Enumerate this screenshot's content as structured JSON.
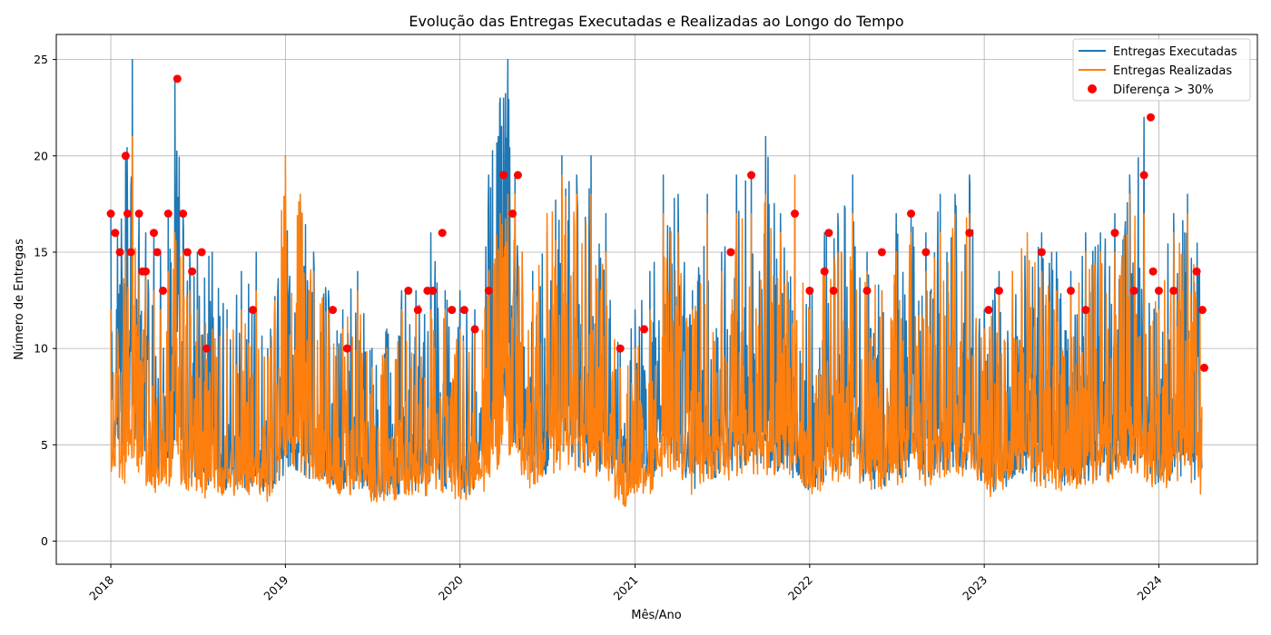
{
  "chart_data": {
    "type": "line",
    "title": "Evolução das Entregas Executadas e Realizadas ao Longo do Tempo",
    "xlabel": "Mês/Ano",
    "ylabel": "Número de Entregas",
    "x_axis_type": "date",
    "xlim": [
      "2017-09-09",
      "2024-07-25"
    ],
    "ylim": [
      -1.2,
      26.3
    ],
    "x_ticks": [
      "2018",
      "2019",
      "2020",
      "2021",
      "2022",
      "2023",
      "2024"
    ],
    "y_ticks": [
      0,
      5,
      10,
      15,
      20,
      25
    ],
    "grid": true,
    "legend_position": "top-right",
    "series": [
      {
        "name": "Entregas Executadas",
        "color": "#1f77b4",
        "x": [
          "2018-01-01",
          "2018-01-15",
          "2018-02-01",
          "2018-02-15",
          "2018-03-01",
          "2018-03-15",
          "2018-04-01",
          "2018-04-15",
          "2018-05-01",
          "2018-05-15",
          "2018-06-01",
          "2018-06-15",
          "2018-07-01",
          "2018-08-01",
          "2018-09-01",
          "2018-10-01",
          "2018-11-01",
          "2018-12-01",
          "2019-01-01",
          "2019-02-01",
          "2019-03-01",
          "2019-04-01",
          "2019-05-01",
          "2019-06-01",
          "2019-07-01",
          "2019-08-01",
          "2019-09-01",
          "2019-10-01",
          "2019-11-01",
          "2019-12-01",
          "2020-01-01",
          "2020-02-01",
          "2020-03-01",
          "2020-03-25",
          "2020-04-10",
          "2020-04-25",
          "2020-05-10",
          "2020-06-01",
          "2020-07-01",
          "2020-08-01",
          "2020-09-01",
          "2020-10-01",
          "2020-11-01",
          "2020-12-01",
          "2021-01-01",
          "2021-02-01",
          "2021-03-01",
          "2021-04-01",
          "2021-05-01",
          "2021-06-01",
          "2021-07-01",
          "2021-08-01",
          "2021-09-01",
          "2021-10-01",
          "2021-11-01",
          "2021-12-01",
          "2022-01-01",
          "2022-02-01",
          "2022-03-01",
          "2022-04-01",
          "2022-05-01",
          "2022-06-01",
          "2022-07-01",
          "2022-08-01",
          "2022-09-01",
          "2022-10-01",
          "2022-11-01",
          "2022-12-01",
          "2023-01-01",
          "2023-02-01",
          "2023-03-01",
          "2023-04-01",
          "2023-05-01",
          "2023-06-01",
          "2023-07-01",
          "2023-08-01",
          "2023-09-01",
          "2023-10-01",
          "2023-11-01",
          "2023-12-01",
          "2024-01-01",
          "2024-02-01",
          "2024-03-01",
          "2024-04-01"
        ],
        "max": [
          17,
          16,
          20,
          25,
          17,
          16,
          16,
          15,
          17,
          24,
          17,
          15,
          15,
          15,
          12,
          14,
          15,
          11,
          17,
          18,
          15,
          13,
          12,
          14,
          10,
          11,
          13,
          13,
          16,
          13,
          13,
          12,
          19,
          23,
          25,
          19,
          15,
          14,
          16,
          20,
          19,
          20,
          17,
          10,
          12,
          14,
          19,
          18,
          13,
          18,
          15,
          19,
          19,
          21,
          17,
          17,
          13,
          16,
          17,
          19,
          15,
          13,
          17,
          17,
          16,
          18,
          18,
          19,
          12,
          14,
          14,
          15,
          16,
          15,
          14,
          16,
          16,
          17,
          19,
          22,
          13,
          17,
          18,
          15
        ],
        "min": [
          3,
          1,
          1,
          1,
          1,
          0,
          0,
          0,
          0,
          0,
          0,
          0,
          0,
          0,
          0,
          0,
          0,
          0,
          0,
          0,
          0,
          0,
          0,
          0,
          0,
          0,
          0,
          0,
          0,
          0,
          0,
          0,
          1,
          2,
          2,
          1,
          1,
          1,
          0,
          1,
          0,
          0,
          0,
          1,
          1,
          0,
          1,
          0,
          0,
          0,
          0,
          0,
          0,
          0,
          0,
          0,
          0,
          0,
          0,
          0,
          0,
          0,
          0,
          0,
          0,
          0,
          0,
          0,
          0,
          0,
          0,
          0,
          0,
          0,
          0,
          0,
          0,
          0,
          0,
          0,
          0,
          0,
          0,
          0
        ]
      },
      {
        "name": "Entregas Realizadas",
        "color": "#ff7f0e",
        "x": [
          "2018-01-01",
          "2018-01-15",
          "2018-02-01",
          "2018-02-15",
          "2018-03-01",
          "2018-03-15",
          "2018-04-01",
          "2018-04-15",
          "2018-05-01",
          "2018-05-15",
          "2018-06-01",
          "2018-06-15",
          "2018-07-01",
          "2018-08-01",
          "2018-09-01",
          "2018-10-01",
          "2018-11-01",
          "2018-12-01",
          "2019-01-01",
          "2019-02-01",
          "2019-03-01",
          "2019-04-01",
          "2019-05-01",
          "2019-06-01",
          "2019-07-01",
          "2019-08-01",
          "2019-09-01",
          "2019-10-01",
          "2019-11-01",
          "2019-12-01",
          "2020-01-01",
          "2020-02-01",
          "2020-03-01",
          "2020-03-25",
          "2020-04-10",
          "2020-04-25",
          "2020-05-10",
          "2020-06-01",
          "2020-07-01",
          "2020-08-01",
          "2020-09-01",
          "2020-10-01",
          "2020-11-01",
          "2020-12-01",
          "2021-01-01",
          "2021-02-01",
          "2021-03-01",
          "2021-04-01",
          "2021-05-01",
          "2021-06-01",
          "2021-07-01",
          "2021-08-01",
          "2021-09-01",
          "2021-10-01",
          "2021-11-01",
          "2021-12-01",
          "2022-01-01",
          "2022-02-01",
          "2022-03-01",
          "2022-04-01",
          "2022-05-01",
          "2022-06-01",
          "2022-07-01",
          "2022-08-01",
          "2022-09-01",
          "2022-10-01",
          "2022-11-01",
          "2022-12-01",
          "2023-01-01",
          "2023-02-01",
          "2023-03-01",
          "2023-04-01",
          "2023-05-01",
          "2023-06-01",
          "2023-07-01",
          "2023-08-01",
          "2023-09-01",
          "2023-10-01",
          "2023-11-01",
          "2023-12-01",
          "2024-01-01",
          "2024-02-01",
          "2024-03-01",
          "2024-04-01"
        ],
        "max": [
          12,
          11,
          15,
          21,
          14,
          14,
          13,
          12,
          14,
          16,
          15,
          13,
          12,
          11,
          11,
          12,
          13,
          10,
          20,
          18,
          14,
          12,
          11,
          13,
          9,
          10,
          12,
          12,
          12,
          12,
          11,
          11,
          14,
          17,
          18,
          18,
          15,
          13,
          17,
          19,
          18,
          18,
          15,
          9,
          10,
          12,
          17,
          16,
          12,
          17,
          14,
          17,
          17,
          18,
          16,
          19,
          12,
          14,
          15,
          17,
          14,
          13,
          15,
          16,
          14,
          16,
          17,
          17,
          11,
          13,
          14,
          16,
          14,
          13,
          13,
          15,
          15,
          15,
          18,
          17,
          12,
          16,
          17,
          12
        ],
        "min": [
          1,
          1,
          0,
          0,
          0,
          0,
          0,
          0,
          0,
          0,
          0,
          0,
          0,
          0,
          0,
          0,
          0,
          0,
          0,
          0,
          0,
          0,
          0,
          0,
          0,
          0,
          0,
          0,
          0,
          0,
          0,
          0,
          0,
          1,
          1,
          1,
          0,
          0,
          0,
          0,
          0,
          0,
          0,
          0,
          0,
          0,
          0,
          0,
          0,
          0,
          0,
          0,
          0,
          0,
          0,
          0,
          0,
          0,
          0,
          0,
          0,
          0,
          0,
          0,
          0,
          0,
          0,
          0,
          0,
          0,
          0,
          0,
          0,
          0,
          0,
          0,
          0,
          0,
          0,
          0,
          0,
          0,
          0,
          0
        ]
      }
    ],
    "scatter": {
      "name": "Diferença > 30%",
      "color": "#ff0000",
      "points": [
        [
          "2018-01-01",
          17
        ],
        [
          "2018-01-10",
          16
        ],
        [
          "2018-01-20",
          15
        ],
        [
          "2018-02-01",
          20
        ],
        [
          "2018-02-05",
          17
        ],
        [
          "2018-02-12",
          15
        ],
        [
          "2018-03-01",
          17
        ],
        [
          "2018-03-08",
          14
        ],
        [
          "2018-03-15",
          14
        ],
        [
          "2018-04-01",
          16
        ],
        [
          "2018-04-08",
          15
        ],
        [
          "2018-04-20",
          13
        ],
        [
          "2018-05-01",
          17
        ],
        [
          "2018-05-20",
          24
        ],
        [
          "2018-06-01",
          17
        ],
        [
          "2018-06-10",
          15
        ],
        [
          "2018-06-20",
          14
        ],
        [
          "2018-07-10",
          15
        ],
        [
          "2018-07-20",
          10
        ],
        [
          "2018-10-25",
          12
        ],
        [
          "2019-04-10",
          12
        ],
        [
          "2019-05-10",
          10
        ],
        [
          "2019-09-15",
          13
        ],
        [
          "2019-10-05",
          12
        ],
        [
          "2019-10-25",
          13
        ],
        [
          "2019-11-05",
          13
        ],
        [
          "2019-11-25",
          16
        ],
        [
          "2019-12-15",
          12
        ],
        [
          "2020-01-10",
          12
        ],
        [
          "2020-02-01",
          11
        ],
        [
          "2020-03-01",
          13
        ],
        [
          "2020-04-01",
          19
        ],
        [
          "2020-04-20",
          17
        ],
        [
          "2020-05-01",
          19
        ],
        [
          "2020-12-01",
          10
        ],
        [
          "2021-01-20",
          11
        ],
        [
          "2021-07-20",
          15
        ],
        [
          "2021-09-01",
          19
        ],
        [
          "2021-12-01",
          17
        ],
        [
          "2022-01-01",
          13
        ],
        [
          "2022-02-01",
          14
        ],
        [
          "2022-02-10",
          16
        ],
        [
          "2022-02-20",
          13
        ],
        [
          "2022-05-01",
          13
        ],
        [
          "2022-06-01",
          15
        ],
        [
          "2022-08-01",
          17
        ],
        [
          "2022-09-01",
          15
        ],
        [
          "2022-12-01",
          16
        ],
        [
          "2023-01-10",
          12
        ],
        [
          "2023-02-01",
          13
        ],
        [
          "2023-05-01",
          15
        ],
        [
          "2023-07-01",
          13
        ],
        [
          "2023-08-01",
          12
        ],
        [
          "2023-10-01",
          16
        ],
        [
          "2023-11-10",
          13
        ],
        [
          "2023-12-01",
          19
        ],
        [
          "2023-12-15",
          22
        ],
        [
          "2023-12-20",
          14
        ],
        [
          "2024-01-01",
          13
        ],
        [
          "2024-02-01",
          13
        ],
        [
          "2024-03-20",
          14
        ],
        [
          "2024-04-01",
          12
        ],
        [
          "2024-04-05",
          9
        ]
      ]
    },
    "legend": [
      "Entregas Executadas",
      "Entregas Realizadas",
      "Diferença > 30%"
    ]
  }
}
